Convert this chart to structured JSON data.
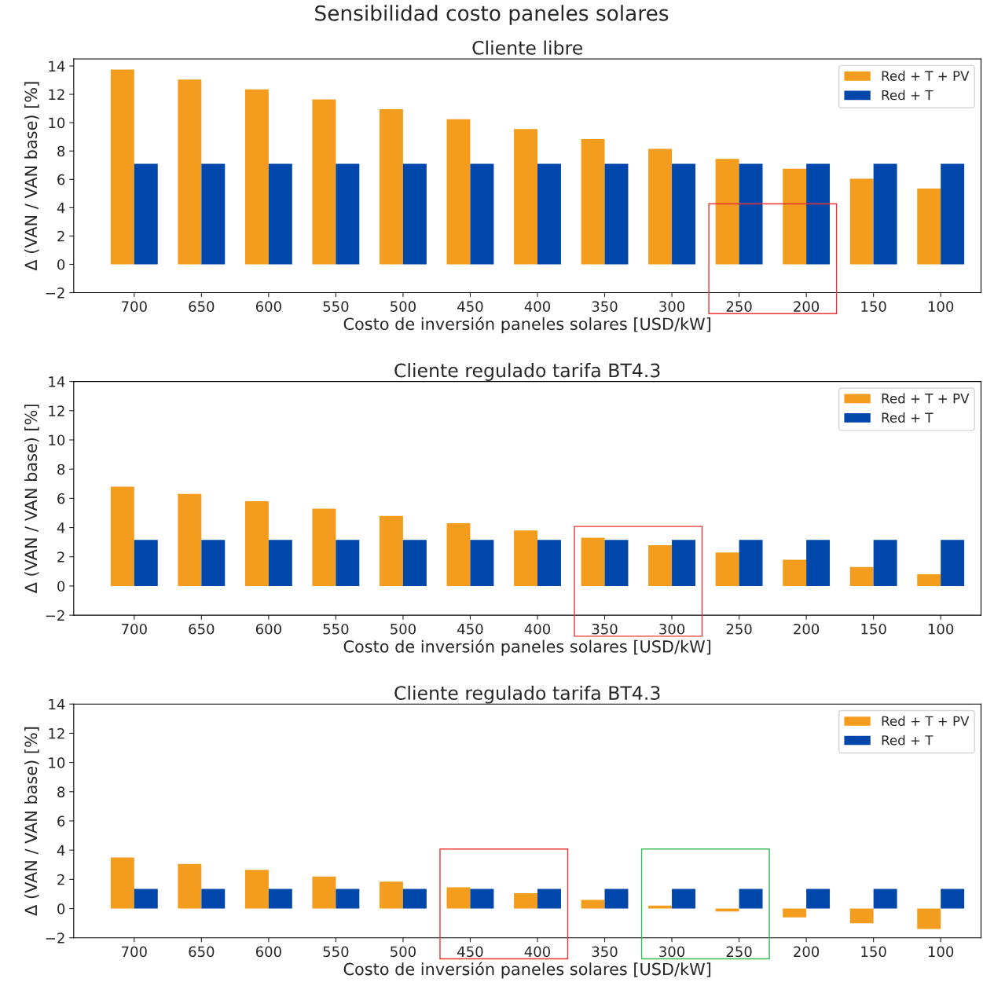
{
  "chart_data": [
    {
      "type": "bar",
      "title": "Cliente libre",
      "xlabel": "Costo de inversión paneles solares [USD/kW]",
      "ylabel": "Δ (VAN / VAN base) [%]",
      "annotations": [
        "Sensibilidad costo paneles solares"
      ],
      "categories": [
        "700",
        "650",
        "600",
        "550",
        "500",
        "450",
        "400",
        "350",
        "300",
        "250",
        "200",
        "150",
        "100"
      ],
      "series": [
        {
          "name": "Red + T + PV",
          "color": "#f39c1e",
          "values": [
            13.75,
            13.05,
            12.35,
            11.65,
            10.95,
            10.25,
            9.55,
            8.85,
            8.15,
            7.45,
            6.75,
            6.05,
            5.35
          ]
        },
        {
          "name": "Red + T",
          "color": "#0047ab",
          "values": [
            7.1,
            7.1,
            7.1,
            7.1,
            7.1,
            7.1,
            7.1,
            7.1,
            7.1,
            7.1,
            7.1,
            7.1,
            7.1
          ]
        }
      ],
      "ylim": [
        -2,
        14.5
      ],
      "yticks": [
        -2,
        0,
        2,
        4,
        6,
        8,
        10,
        12,
        14
      ],
      "legend": "top right"
    },
    {
      "type": "bar",
      "title": "Cliente regulado tarifa BT4.3",
      "xlabel": "Costo de inversión paneles solares [USD/kW]",
      "ylabel": "Δ (VAN / VAN base) [%]",
      "categories": [
        "700",
        "650",
        "600",
        "550",
        "500",
        "450",
        "400",
        "350",
        "300",
        "250",
        "200",
        "150",
        "100"
      ],
      "series": [
        {
          "name": "Red + T + PV",
          "color": "#f39c1e",
          "values": [
            6.8,
            6.3,
            5.8,
            5.3,
            4.8,
            4.3,
            3.8,
            3.3,
            2.8,
            2.3,
            1.8,
            1.3,
            0.8
          ]
        },
        {
          "name": "Red + T",
          "color": "#0047ab",
          "values": [
            3.15,
            3.15,
            3.15,
            3.15,
            3.15,
            3.15,
            3.15,
            3.15,
            3.15,
            3.15,
            3.15,
            3.15,
            3.15
          ]
        }
      ],
      "ylim": [
        -2,
        14
      ],
      "yticks": [
        -2,
        0,
        2,
        4,
        6,
        8,
        10,
        12,
        14
      ],
      "legend": "top right"
    },
    {
      "type": "bar",
      "title": "Cliente regulado tarifa BT4.3",
      "xlabel": "Costo de inversión paneles solares [USD/kW]",
      "ylabel": "Δ (VAN / VAN base) [%]",
      "categories": [
        "700",
        "650",
        "600",
        "550",
        "500",
        "450",
        "400",
        "350",
        "300",
        "250",
        "200",
        "150",
        "100"
      ],
      "series": [
        {
          "name": "Red + T + PV",
          "color": "#f39c1e",
          "values": [
            3.5,
            3.05,
            2.65,
            2.2,
            1.85,
            1.45,
            1.05,
            0.6,
            0.2,
            -0.2,
            -0.6,
            -1.0,
            -1.4
          ]
        },
        {
          "name": "Red + T",
          "color": "#0047ab",
          "values": [
            1.35,
            1.35,
            1.35,
            1.35,
            1.35,
            1.35,
            1.35,
            1.35,
            1.35,
            1.35,
            1.35,
            1.35,
            1.35
          ]
        }
      ],
      "ylim": [
        -2,
        14
      ],
      "yticks": [
        -2,
        0,
        2,
        4,
        6,
        8,
        10,
        12,
        14
      ],
      "legend": "top right"
    }
  ]
}
